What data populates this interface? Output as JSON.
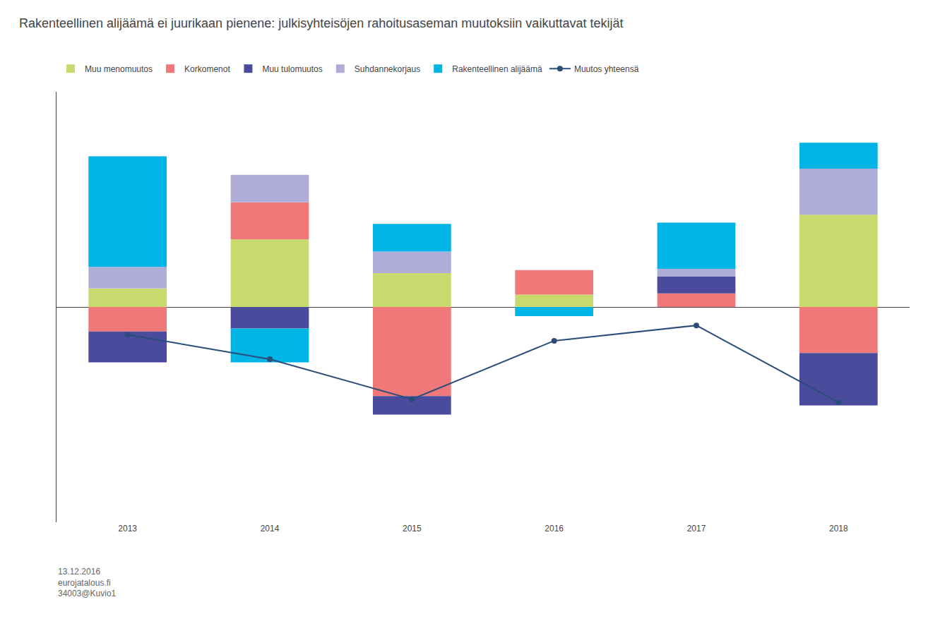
{
  "chart_data": {
    "type": "bar",
    "title": "Rakenteellinen alijäämä ei juurikaan pienene: julkisyhteisöjen rahoitusaseman muutoksiin vaikuttavat tekijät",
    "categories": [
      "2013",
      "2014",
      "2015",
      "2016",
      "2017",
      "2018"
    ],
    "series": [
      {
        "name": "Muu menomuutos",
        "color": "#c8d96e",
        "type": "bar",
        "values": [
          0.3,
          1.1,
          0.55,
          0.2,
          null,
          1.5
        ]
      },
      {
        "name": "Korkomenot",
        "color": "#f07878",
        "type": "bar",
        "values": [
          -0.4,
          0.6,
          -1.45,
          0.4,
          0.22,
          -0.75
        ]
      },
      {
        "name": "Muu tulomuutos",
        "color": "#4b4b9e",
        "type": "bar",
        "values": [
          -0.5,
          -0.35,
          -0.3,
          null,
          0.28,
          -0.85
        ]
      },
      {
        "name": "Suhdannekorjaus",
        "color": "#b0aed8",
        "type": "bar",
        "values": [
          0.35,
          0.45,
          0.35,
          null,
          0.12,
          0.75
        ]
      },
      {
        "name": "Rakenteellinen alijäämä",
        "color": "#00b4e6",
        "type": "bar",
        "values": [
          1.8,
          -0.55,
          0.45,
          -0.15,
          0.75,
          0.42
        ]
      },
      {
        "name": "Muutos yhteensä",
        "color": "#2a4d7a",
        "type": "line",
        "marker": "circle",
        "values": [
          -0.45,
          -0.85,
          -1.5,
          -0.55,
          -0.3,
          -1.55
        ]
      }
    ],
    "stacked": true,
    "ylim": [
      -3.5,
      3.5
    ],
    "yticks": [],
    "tick_labels": "x",
    "grid": false,
    "legend": "top",
    "annotations": [
      "13.12.2016\neurojatalous.fi\n34003@Kuvio1"
    ]
  }
}
